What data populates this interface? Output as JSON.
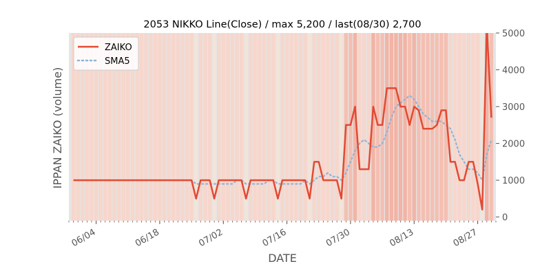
{
  "chart_data": {
    "type": "line",
    "title": "2053 NIKKO Line(Close) / max 5,200 / last(08/30) 2,700",
    "xlabel": "DATE",
    "ylabel": "IPPAN ZAIKO (volume)",
    "ylim": [
      -100,
      5000
    ],
    "yticks": [
      0,
      1000,
      2000,
      3000,
      4000,
      5000
    ],
    "year": 2024,
    "x_start": "05-29",
    "x_end": "08-31",
    "xticks": [
      "06/04",
      "06/18",
      "07/02",
      "07/16",
      "07/30",
      "08/13",
      "08/27"
    ],
    "grid": false,
    "legend_position": "top-left",
    "colors": {
      "zaiko": "#e24a33",
      "sma5": "#8eb4d6",
      "background": "#e5e5e5"
    },
    "x": [
      "05-30",
      "05-31",
      "06-01",
      "06-02",
      "06-03",
      "06-04",
      "06-05",
      "06-06",
      "06-07",
      "06-08",
      "06-09",
      "06-10",
      "06-11",
      "06-12",
      "06-13",
      "06-14",
      "06-15",
      "06-16",
      "06-17",
      "06-18",
      "06-19",
      "06-20",
      "06-21",
      "06-22",
      "06-23",
      "06-24",
      "06-25",
      "06-26",
      "06-27",
      "06-28",
      "06-29",
      "06-30",
      "07-01",
      "07-02",
      "07-03",
      "07-04",
      "07-05",
      "07-06",
      "07-07",
      "07-08",
      "07-09",
      "07-10",
      "07-11",
      "07-12",
      "07-13",
      "07-14",
      "07-15",
      "07-16",
      "07-17",
      "07-18",
      "07-19",
      "07-20",
      "07-21",
      "07-22",
      "07-23",
      "07-24",
      "07-25",
      "07-26",
      "07-27",
      "07-28",
      "07-29",
      "07-30",
      "07-31",
      "08-01",
      "08-02",
      "08-03",
      "08-04",
      "08-05",
      "08-06",
      "08-07",
      "08-08",
      "08-09",
      "08-10",
      "08-11",
      "08-12",
      "08-13",
      "08-14",
      "08-15",
      "08-16",
      "08-17",
      "08-18",
      "08-19",
      "08-20",
      "08-21",
      "08-22",
      "08-23",
      "08-24",
      "08-25",
      "08-26",
      "08-27",
      "08-28",
      "08-29",
      "08-30"
    ],
    "series": [
      {
        "name": "ZAIKO",
        "style": "solid",
        "values": [
          1000,
          1000,
          1000,
          1000,
          1000,
          1000,
          1000,
          1000,
          1000,
          1000,
          1000,
          1000,
          1000,
          1000,
          1000,
          1000,
          1000,
          1000,
          1000,
          1000,
          1000,
          1000,
          1000,
          1000,
          1000,
          1000,
          1000,
          500,
          1000,
          1000,
          1000,
          500,
          1000,
          1000,
          1000,
          1000,
          1000,
          1000,
          500,
          1000,
          1000,
          1000,
          1000,
          1000,
          1000,
          500,
          1000,
          1000,
          1000,
          1000,
          1000,
          1000,
          500,
          1500,
          1500,
          1000,
          1000,
          1000,
          1000,
          500,
          2500,
          2500,
          3000,
          1300,
          1300,
          1300,
          3000,
          2500,
          2500,
          3500,
          3500,
          3500,
          3000,
          3000,
          2500,
          3000,
          2900,
          2400,
          2400,
          2400,
          2500,
          2900,
          2900,
          1500,
          1500,
          1000,
          1000,
          1500,
          1500,
          900,
          200,
          5200,
          2700
        ]
      },
      {
        "name": "SMA5",
        "style": "dotted",
        "values": [
          null,
          null,
          null,
          null,
          1000,
          1000,
          1000,
          1000,
          1000,
          1000,
          1000,
          1000,
          1000,
          1000,
          1000,
          1000,
          1000,
          1000,
          1000,
          1000,
          1000,
          1000,
          1000,
          1000,
          1000,
          1000,
          1000,
          900,
          900,
          900,
          900,
          900,
          900,
          900,
          900,
          900,
          1000,
          1000,
          900,
          900,
          900,
          900,
          900,
          1000,
          1000,
          900,
          900,
          900,
          900,
          900,
          900,
          1000,
          900,
          1000,
          1100,
          1100,
          1200,
          1100,
          1100,
          1000,
          1200,
          1500,
          1800,
          2000,
          2100,
          2000,
          1900,
          1900,
          2000,
          2300,
          2700,
          3000,
          3100,
          3200,
          3300,
          3200,
          3000,
          2800,
          2700,
          2600,
          2600,
          2600,
          2500,
          2400,
          2100,
          1700,
          1500,
          1300,
          1300,
          1200,
          1000,
          1700,
          2100
        ]
      }
    ],
    "legend": [
      {
        "label": "ZAIKO",
        "style": "solid"
      },
      {
        "label": "SMA5",
        "style": "dotted"
      }
    ]
  }
}
